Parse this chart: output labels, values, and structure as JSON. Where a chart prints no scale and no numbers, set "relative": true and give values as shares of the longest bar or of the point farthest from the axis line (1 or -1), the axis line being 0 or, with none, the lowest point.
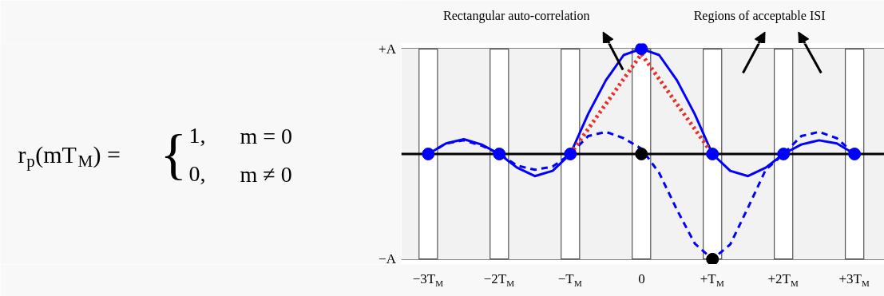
{
  "chart_data": {
    "type": "line",
    "relative": true,
    "xlim": [
      -3.38,
      3.42
    ],
    "xticks": [
      {
        "value": -3,
        "label": "−3T$_{M}$"
      },
      {
        "value": -2,
        "label": "−2T$_{M}$"
      },
      {
        "value": -1,
        "label": "−T$_{M}$"
      },
      0,
      {
        "value": 1,
        "label": "+T$_{M}$"
      },
      {
        "value": 2,
        "label": "+2T$_{M}$"
      },
      {
        "value": 3,
        "label": "+3T$_{M}$"
      }
    ],
    "series": [
      {
        "type": "line",
        "color": "#0000ff",
        "line_style": "solid",
        "marker": "none",
        "x": [
          -3,
          -2.75,
          -2.5,
          -2.25,
          -2,
          -1.75,
          -1.5,
          -1.25,
          -1,
          -0.75,
          -0.5,
          -0.25,
          0,
          0.25,
          0.5,
          0.75,
          1,
          1.25,
          1.5,
          1.75,
          2,
          2.25,
          2.5,
          2.75,
          3
        ],
        "values": [
          0,
          0.1,
          0.14,
          0.09,
          0,
          -0.13,
          -0.21,
          -0.16,
          0,
          0.38,
          0.7,
          0.94,
          1,
          0.94,
          0.7,
          0.38,
          0,
          -0.16,
          -0.21,
          -0.13,
          0,
          0.09,
          0.13,
          0.1,
          0
        ]
      },
      {
        "type": "line",
        "color": "#0000ff",
        "line_style": "dashed",
        "marker": "none",
        "x": [
          -3,
          -2.75,
          -2.5,
          -2.25,
          -2,
          -1.75,
          -1.5,
          -1.25,
          -1,
          -0.75,
          -0.5,
          -0.25,
          0,
          0.25,
          0.5,
          0.75,
          1,
          1.25,
          1.5,
          1.75,
          2,
          2.25,
          2.5,
          2.75,
          3
        ],
        "values": [
          0,
          0.1,
          0.13,
          0.08,
          0,
          -0.11,
          -0.15,
          -0.12,
          0,
          0.17,
          0.21,
          0.15,
          0.05,
          -0.18,
          -0.53,
          -0.85,
          -1,
          -0.86,
          -0.51,
          -0.15,
          0,
          0.17,
          0.21,
          0.15,
          0
        ]
      },
      {
        "type": "line",
        "color": "#e8302a",
        "line_style": "dotted",
        "marker": "none",
        "x": [
          -1,
          0,
          1
        ],
        "values": [
          0,
          0.95,
          0
        ]
      },
      {
        "type": "scatter",
        "color": "#0000ff",
        "marker": "circle",
        "x": [
          -3,
          -2,
          -1,
          0,
          1,
          2,
          3
        ],
        "values": [
          0,
          0,
          0,
          1,
          0,
          0,
          0
        ]
      },
      {
        "type": "scatter",
        "color": "#000000",
        "marker": "circle",
        "x": [
          0,
          1
        ],
        "values": [
          0,
          -1
        ]
      }
    ],
    "ref_lines": [
      {
        "axis": "y",
        "value": 0,
        "color": "#000000"
      }
    ],
    "bands": [
      {
        "axis": "x",
        "from": -3.38,
        "to": -3.13,
        "color": "#f2f2f2"
      },
      {
        "axis": "x",
        "from": -2.87,
        "to": -2.13,
        "color": "#f2f2f2"
      },
      {
        "axis": "x",
        "from": -1.87,
        "to": -1.13,
        "color": "#f2f2f2"
      },
      {
        "axis": "x",
        "from": -0.87,
        "to": -0.13,
        "color": "#f2f2f2"
      },
      {
        "axis": "x",
        "from": 0.13,
        "to": 0.87,
        "color": "#f2f2f2"
      },
      {
        "axis": "x",
        "from": 1.13,
        "to": 1.87,
        "color": "#f2f2f2"
      },
      {
        "axis": "x",
        "from": 2.13,
        "to": 2.87,
        "color": "#f2f2f2"
      },
      {
        "axis": "x",
        "from": 3.13,
        "to": 3.42,
        "color": "#f2f2f2"
      }
    ],
    "annotations": [
      "+A",
      "−A",
      "Rectangular auto-correlation",
      "Regions of acceptable ISI",
      "r$_{p}$(mT$_{M}$) =",
      "{",
      "1,",
      "m = 0",
      "0,",
      "m ≠ 0"
    ]
  }
}
